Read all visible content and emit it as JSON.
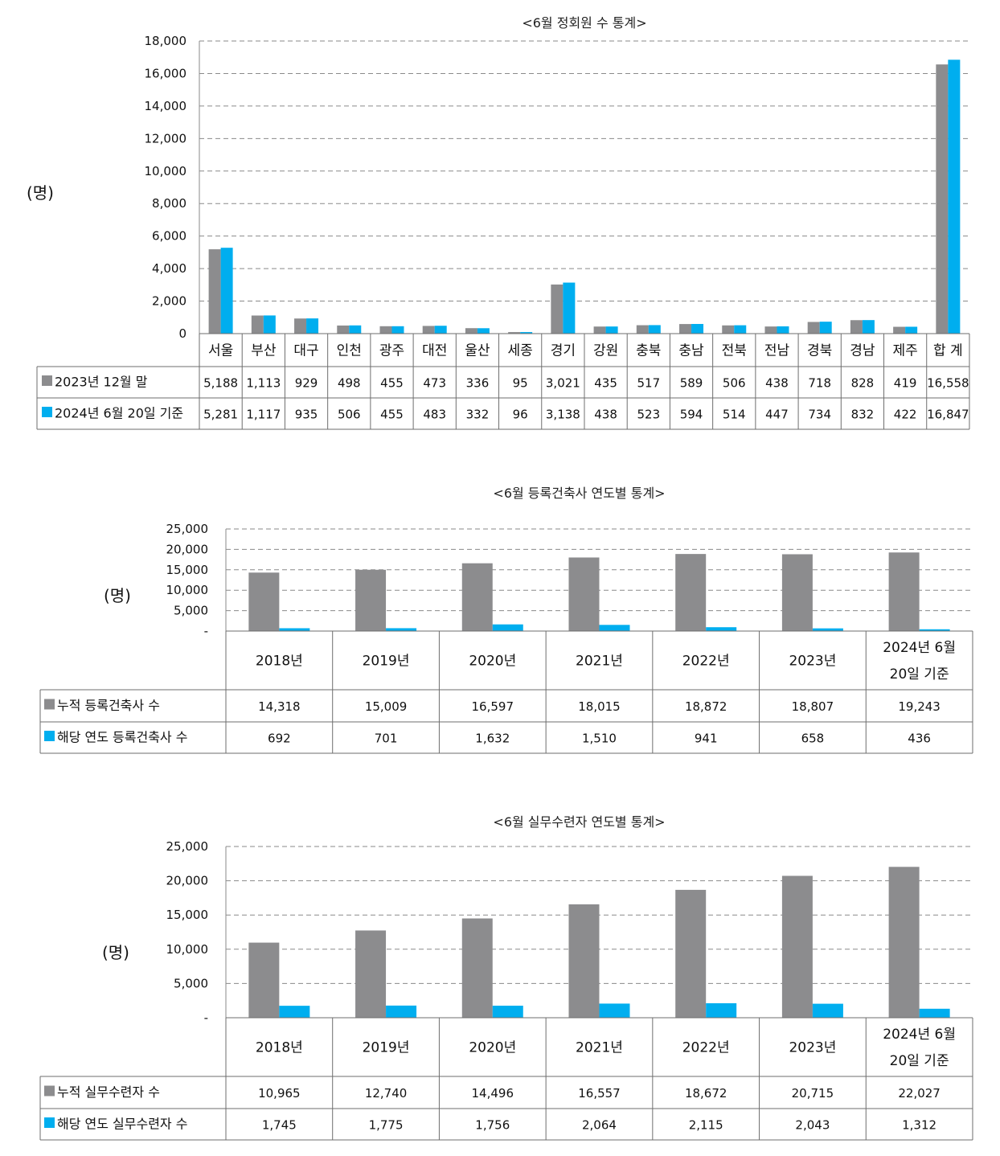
{
  "charts": [
    {
      "type": "bar",
      "title": "<6월 정회원 수 통계>",
      "ylabel": "(명)",
      "ylim": [
        0,
        18000
      ],
      "yticks": [
        "0",
        "2,000",
        "4,000",
        "6,000",
        "8,000",
        "10,000",
        "12,000",
        "14,000",
        "16,000",
        "18,000"
      ],
      "categories": [
        "서울",
        "부산",
        "대구",
        "인천",
        "광주",
        "대전",
        "울산",
        "세종",
        "경기",
        "강원",
        "충북",
        "충남",
        "전북",
        "전남",
        "경북",
        "경남",
        "제주",
        "합 계"
      ],
      "series": [
        {
          "name": "2023년 12월 말",
          "color": "#8c8c8e",
          "values": [
            5188,
            1113,
            929,
            498,
            455,
            473,
            336,
            95,
            3021,
            435,
            517,
            589,
            506,
            438,
            718,
            828,
            419,
            16558
          ],
          "labels": [
            "5,188",
            "1,113",
            "929",
            "498",
            "455",
            "473",
            "336",
            "95",
            "3,021",
            "435",
            "517",
            "589",
            "506",
            "438",
            "718",
            "828",
            "419",
            "16,558"
          ]
        },
        {
          "name": "2024년 6월 20일 기준",
          "color": "#00aeef",
          "values": [
            5281,
            1117,
            935,
            506,
            455,
            483,
            332,
            96,
            3138,
            438,
            523,
            594,
            514,
            447,
            734,
            832,
            422,
            16847
          ],
          "labels": [
            "5,281",
            "1,117",
            "935",
            "506",
            "455",
            "483",
            "332",
            "96",
            "3,138",
            "438",
            "523",
            "594",
            "514",
            "447",
            "734",
            "832",
            "422",
            "16,847"
          ]
        }
      ]
    },
    {
      "type": "bar",
      "title": "<6월 등록건축사 연도별 통계>",
      "ylabel": "(명)",
      "ylim": [
        0,
        25000
      ],
      "yticks": [
        "-",
        "5,000",
        "10,000",
        "15,000",
        "20,000",
        "25,000"
      ],
      "categories": [
        "2018년",
        "2019년",
        "2020년",
        "2021년",
        "2022년",
        "2023년",
        "2024년 6월\n20일 기준"
      ],
      "series": [
        {
          "name": "누적 등록건축사 수",
          "color": "#8c8c8e",
          "values": [
            14318,
            15009,
            16597,
            18015,
            18872,
            18807,
            19243
          ],
          "labels": [
            "14,318",
            "15,009",
            "16,597",
            "18,015",
            "18,872",
            "18,807",
            "19,243"
          ]
        },
        {
          "name": "해당 연도 등록건축사 수",
          "color": "#00aeef",
          "values": [
            692,
            701,
            1632,
            1510,
            941,
            658,
            436
          ],
          "labels": [
            "692",
            "701",
            "1,632",
            "1,510",
            "941",
            "658",
            "436"
          ]
        }
      ]
    },
    {
      "type": "bar",
      "title": "<6월 실무수련자 연도별 통계>",
      "ylabel": "(명)",
      "ylim": [
        0,
        25000
      ],
      "yticks": [
        "-",
        "5,000",
        "10,000",
        "15,000",
        "20,000",
        "25,000"
      ],
      "categories": [
        "2018년",
        "2019년",
        "2020년",
        "2021년",
        "2022년",
        "2023년",
        "2024년 6월\n20일 기준"
      ],
      "series": [
        {
          "name": "누적 실무수련자 수",
          "color": "#8c8c8e",
          "values": [
            10965,
            12740,
            14496,
            16557,
            18672,
            20715,
            22027
          ],
          "labels": [
            "10,965",
            "12,740",
            "14,496",
            "16,557",
            "18,672",
            "20,715",
            "22,027"
          ]
        },
        {
          "name": "해당 연도 실무수련자 수",
          "color": "#00aeef",
          "values": [
            1745,
            1775,
            1756,
            2064,
            2115,
            2043,
            1312
          ],
          "labels": [
            "1,745",
            "1,775",
            "1,756",
            "2,064",
            "2,115",
            "2,043",
            "1,312"
          ]
        }
      ]
    }
  ]
}
